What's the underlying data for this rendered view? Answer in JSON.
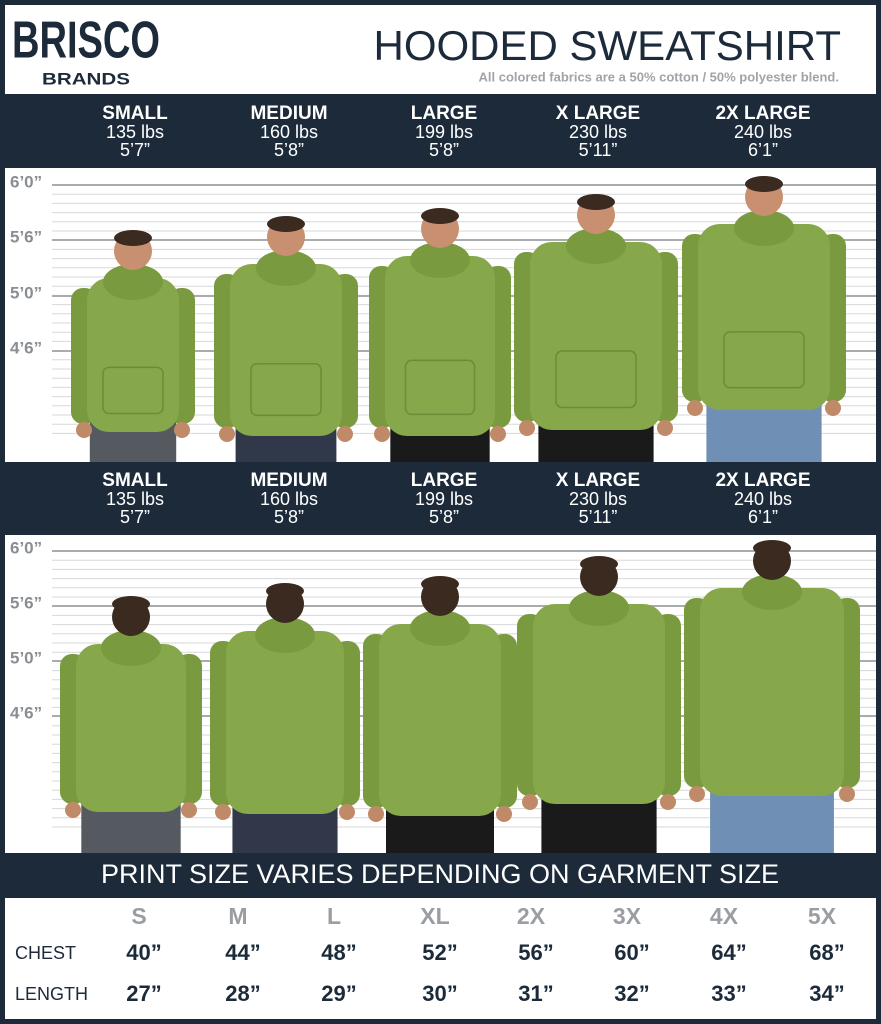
{
  "header": {
    "logo": {
      "top": "BRISCO",
      "bottom": "BRANDS"
    },
    "title": "HOODED SWEATSHIRT",
    "subtitle": "All colored fabrics are a 50% cotton / 50% polyester blend."
  },
  "panels": [
    {
      "view": "front",
      "sizes": [
        {
          "name": "SMALL",
          "weight": "135 lbs",
          "height": "5’7”"
        },
        {
          "name": "MEDIUM",
          "weight": "160 lbs",
          "height": "5’8”"
        },
        {
          "name": "LARGE",
          "weight": "199 lbs",
          "height": "5’8”"
        },
        {
          "name": "X LARGE",
          "weight": "230 lbs",
          "height": "5’11”"
        },
        {
          "name": "2X LARGE",
          "weight": "240 lbs",
          "height": "6’1”"
        }
      ],
      "height_marks": [
        "6’0”",
        "5’6”",
        "5’0”",
        "4’6”"
      ]
    },
    {
      "view": "back",
      "sizes": [
        {
          "name": "SMALL",
          "weight": "135 lbs",
          "height": "5’7”"
        },
        {
          "name": "MEDIUM",
          "weight": "160 lbs",
          "height": "5’8”"
        },
        {
          "name": "LARGE",
          "weight": "199 lbs",
          "height": "5’8”"
        },
        {
          "name": "X LARGE",
          "weight": "230 lbs",
          "height": "5’11”"
        },
        {
          "name": "2X LARGE",
          "weight": "240 lbs",
          "height": "6’1”"
        }
      ],
      "height_marks": [
        "6’0”",
        "5’6”",
        "5’0”",
        "4’6”"
      ]
    }
  ],
  "print_table": {
    "title": "PRINT SIZE VARIES DEPENDING ON GARMENT SIZE",
    "columns": [
      "S",
      "M",
      "L",
      "XL",
      "2X",
      "3X",
      "4X",
      "5X"
    ],
    "rows": [
      {
        "label": "CHEST",
        "values": [
          "40”",
          "44”",
          "48”",
          "52”",
          "56”",
          "60”",
          "64”",
          "68”"
        ]
      },
      {
        "label": "LENGTH",
        "values": [
          "27”",
          "28”",
          "29”",
          "30”",
          "31”",
          "32”",
          "33”",
          "34”"
        ]
      }
    ]
  }
}
